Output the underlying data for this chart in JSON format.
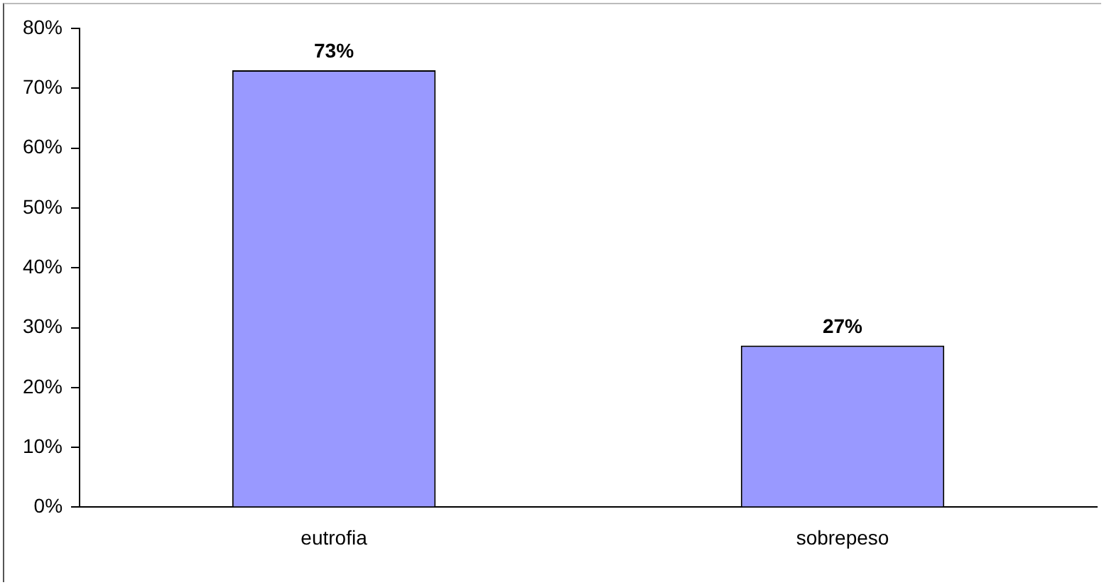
{
  "chart_data": {
    "type": "bar",
    "categories": [
      "eutrofia",
      "sobrepeso"
    ],
    "values": [
      73,
      27
    ],
    "color": "#9999ff",
    "value_labels": [
      "73%",
      "27%"
    ],
    "ylim": [
      0,
      80
    ],
    "yticks": [
      {
        "value": 0,
        "label": "0%"
      },
      {
        "value": 10,
        "label": "10%"
      },
      {
        "value": 20,
        "label": "20%"
      },
      {
        "value": 30,
        "label": "30%"
      },
      {
        "value": 40,
        "label": "40%"
      },
      {
        "value": 50,
        "label": "50%"
      },
      {
        "value": 60,
        "label": "60%"
      },
      {
        "value": 70,
        "label": "70%"
      },
      {
        "value": 80,
        "label": "80%"
      }
    ],
    "grid": false,
    "legend": false
  }
}
